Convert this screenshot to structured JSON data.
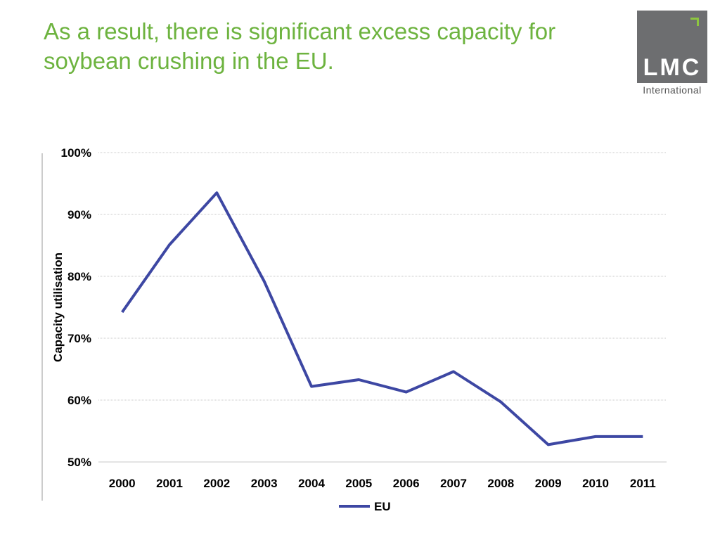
{
  "slide": {
    "title": "As a result, there is significant excess capacity for soybean crushing in the EU.",
    "title_color": "#6db33f"
  },
  "logo": {
    "text": "LMC",
    "subtext": "International",
    "box_color": "#6d6e70",
    "accent_color": "#8dc63f"
  },
  "chart_data": {
    "type": "line",
    "title": "",
    "xlabel": "",
    "ylabel": "Capacity utilisation",
    "categories": [
      "2000",
      "2001",
      "2002",
      "2003",
      "2004",
      "2005",
      "2006",
      "2007",
      "2008",
      "2009",
      "2010",
      "2011"
    ],
    "series": [
      {
        "name": "EU",
        "color": "#3d47a3",
        "values": [
          74.2,
          85.1,
          93.5,
          79.2,
          62.2,
          63.3,
          61.3,
          64.6,
          59.7,
          52.8,
          54.1,
          54.1
        ]
      }
    ],
    "ylim": [
      50,
      100
    ],
    "yticks": [
      50,
      60,
      70,
      80,
      90,
      100
    ],
    "ytick_labels": [
      "50%",
      "60%",
      "70%",
      "80%",
      "90%",
      "100%"
    ],
    "grid": true,
    "legend_position": "bottom-center"
  }
}
